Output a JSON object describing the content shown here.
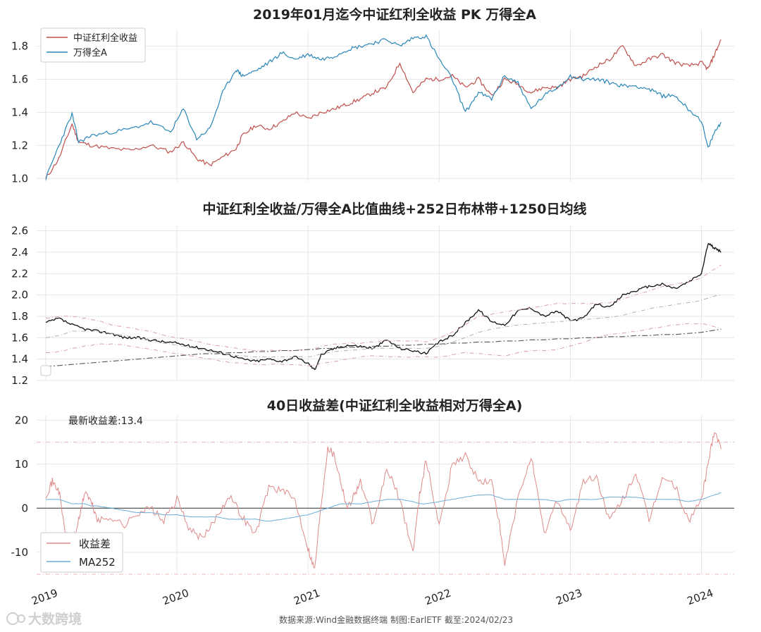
{
  "colors": {
    "dividend": "#c0504d",
    "wind": "#2a86b8",
    "ratio": "#111111",
    "band_upper": "#d9a0aa",
    "band_mid": "#b0b0b0",
    "band_lower": "#d9a0aa",
    "ma1250": "#555555",
    "diff": "#e08a8a",
    "ma252": "#6baed6",
    "grid": "#e6e6e6"
  },
  "footer": "数据来源:Wind金融数据终端  制图:EarlETF 截至:2024/02/23",
  "watermark": "大数跨境",
  "chart_data": [
    {
      "type": "line",
      "title": "2019年01月迄今中证红利全收益 PK 万得全A",
      "ylim": [
        0.98,
        1.9
      ],
      "yticks": [
        "1.0",
        "1.2",
        "1.4",
        "1.6",
        "1.8"
      ],
      "yticks_values": [
        1.0,
        1.2,
        1.4,
        1.6,
        1.8
      ],
      "legend_position": "top-left",
      "x": [
        2019.0,
        2019.1,
        2019.2,
        2019.25,
        2019.35,
        2019.5,
        2019.65,
        2019.8,
        2019.95,
        2020.05,
        2020.15,
        2020.25,
        2020.35,
        2020.45,
        2020.5,
        2020.6,
        2020.7,
        2020.8,
        2020.9,
        2021.0,
        2021.1,
        2021.2,
        2021.3,
        2021.4,
        2021.5,
        2021.6,
        2021.7,
        2021.8,
        2021.9,
        2022.0,
        2022.1,
        2022.2,
        2022.3,
        2022.4,
        2022.5,
        2022.6,
        2022.7,
        2022.8,
        2022.9,
        2023.0,
        2023.1,
        2023.2,
        2023.3,
        2023.4,
        2023.5,
        2023.6,
        2023.7,
        2023.8,
        2023.9,
        2024.0,
        2024.05,
        2024.1,
        2024.15
      ],
      "series": [
        {
          "name": "中证红利全收益",
          "values": [
            1.0,
            1.12,
            1.33,
            1.22,
            1.2,
            1.18,
            1.17,
            1.2,
            1.16,
            1.22,
            1.12,
            1.08,
            1.13,
            1.18,
            1.26,
            1.32,
            1.3,
            1.34,
            1.4,
            1.36,
            1.4,
            1.42,
            1.45,
            1.48,
            1.52,
            1.55,
            1.7,
            1.52,
            1.6,
            1.6,
            1.62,
            1.55,
            1.6,
            1.5,
            1.6,
            1.57,
            1.52,
            1.55,
            1.55,
            1.6,
            1.62,
            1.68,
            1.72,
            1.8,
            1.68,
            1.72,
            1.75,
            1.7,
            1.68,
            1.7,
            1.66,
            1.75,
            1.84
          ]
        },
        {
          "name": "万得全A",
          "values": [
            1.0,
            1.2,
            1.39,
            1.22,
            1.26,
            1.28,
            1.3,
            1.34,
            1.28,
            1.42,
            1.24,
            1.3,
            1.52,
            1.66,
            1.62,
            1.65,
            1.7,
            1.76,
            1.72,
            1.75,
            1.72,
            1.74,
            1.78,
            1.8,
            1.82,
            1.84,
            1.8,
            1.85,
            1.86,
            1.72,
            1.6,
            1.4,
            1.52,
            1.48,
            1.62,
            1.58,
            1.42,
            1.5,
            1.55,
            1.62,
            1.6,
            1.6,
            1.58,
            1.56,
            1.56,
            1.54,
            1.5,
            1.5,
            1.42,
            1.35,
            1.18,
            1.28,
            1.34
          ]
        }
      ]
    },
    {
      "type": "line",
      "title": "中证红利全收益/万得全A比值曲线+252日布林带+1250日均线",
      "ylim": [
        1.2,
        2.65
      ],
      "yticks": [
        "1.2",
        "1.4",
        "1.6",
        "1.8",
        "2.0",
        "2.2",
        "2.4",
        "2.6"
      ],
      "yticks_values": [
        1.2,
        1.4,
        1.6,
        1.8,
        2.0,
        2.2,
        2.4,
        2.6
      ],
      "x": [
        2019.0,
        2019.1,
        2019.2,
        2019.3,
        2019.4,
        2019.5,
        2019.6,
        2019.7,
        2019.8,
        2019.9,
        2020.0,
        2020.1,
        2020.2,
        2020.3,
        2020.4,
        2020.5,
        2020.6,
        2020.7,
        2020.8,
        2020.9,
        2021.0,
        2021.05,
        2021.1,
        2021.2,
        2021.3,
        2021.4,
        2021.5,
        2021.6,
        2021.7,
        2021.8,
        2021.9,
        2022.0,
        2022.1,
        2022.2,
        2022.3,
        2022.4,
        2022.5,
        2022.6,
        2022.7,
        2022.8,
        2022.9,
        2023.0,
        2023.1,
        2023.2,
        2023.3,
        2023.4,
        2023.5,
        2023.6,
        2023.7,
        2023.8,
        2023.9,
        2024.0,
        2024.05,
        2024.1,
        2024.15
      ],
      "series": [
        {
          "name": "",
          "values": [
            1.74,
            1.78,
            1.72,
            1.68,
            1.66,
            1.64,
            1.6,
            1.6,
            1.58,
            1.56,
            1.55,
            1.52,
            1.5,
            1.47,
            1.44,
            1.4,
            1.38,
            1.4,
            1.38,
            1.42,
            1.36,
            1.3,
            1.44,
            1.5,
            1.53,
            1.52,
            1.5,
            1.58,
            1.5,
            1.48,
            1.45,
            1.56,
            1.62,
            1.74,
            1.86,
            1.75,
            1.72,
            1.85,
            1.88,
            1.8,
            1.85,
            1.76,
            1.78,
            1.92,
            1.88,
            2.0,
            2.04,
            2.08,
            2.1,
            2.06,
            2.12,
            2.2,
            2.48,
            2.44,
            2.4
          ]
        },
        {
          "name": "",
          "values": [
            1.78,
            1.8,
            1.8,
            1.78,
            1.76,
            1.72,
            1.7,
            1.68,
            1.66,
            1.62,
            1.6,
            1.58,
            1.55,
            1.53,
            1.51,
            1.49,
            1.48,
            1.48,
            1.48,
            1.48,
            1.49,
            1.5,
            1.52,
            1.54,
            1.55,
            1.55,
            1.56,
            1.57,
            1.57,
            1.57,
            1.56,
            1.6,
            1.65,
            1.72,
            1.8,
            1.82,
            1.84,
            1.86,
            1.88,
            1.9,
            1.92,
            1.92,
            1.92,
            1.92,
            1.93,
            1.96,
            2.0,
            2.04,
            2.08,
            2.1,
            2.12,
            2.16,
            2.2,
            2.24,
            2.28
          ]
        },
        {
          "name": "",
          "values": [
            1.6,
            1.62,
            1.66,
            1.66,
            1.66,
            1.64,
            1.62,
            1.6,
            1.58,
            1.55,
            1.53,
            1.51,
            1.48,
            1.46,
            1.44,
            1.43,
            1.42,
            1.42,
            1.42,
            1.42,
            1.42,
            1.43,
            1.45,
            1.47,
            1.48,
            1.49,
            1.5,
            1.5,
            1.5,
            1.5,
            1.5,
            1.52,
            1.56,
            1.6,
            1.65,
            1.68,
            1.7,
            1.72,
            1.73,
            1.74,
            1.75,
            1.76,
            1.77,
            1.78,
            1.79,
            1.81,
            1.84,
            1.87,
            1.89,
            1.91,
            1.93,
            1.95,
            1.97,
            1.99,
            2.0
          ]
        },
        {
          "name": "",
          "values": [
            1.46,
            1.47,
            1.5,
            1.52,
            1.54,
            1.54,
            1.53,
            1.51,
            1.49,
            1.47,
            1.45,
            1.43,
            1.41,
            1.39,
            1.37,
            1.36,
            1.35,
            1.35,
            1.35,
            1.35,
            1.34,
            1.34,
            1.36,
            1.38,
            1.4,
            1.42,
            1.43,
            1.42,
            1.42,
            1.42,
            1.42,
            1.42,
            1.44,
            1.46,
            1.45,
            1.44,
            1.43,
            1.46,
            1.48,
            1.48,
            1.49,
            1.52,
            1.56,
            1.6,
            1.63,
            1.64,
            1.66,
            1.68,
            1.7,
            1.72,
            1.73,
            1.73,
            1.72,
            1.7,
            1.68
          ]
        },
        {
          "name": "",
          "values": [
            1.33,
            1.34,
            1.35,
            1.36,
            1.37,
            1.38,
            1.39,
            1.4,
            1.41,
            1.42,
            1.43,
            1.44,
            1.45,
            1.45,
            1.46,
            1.46,
            1.47,
            1.47,
            1.48,
            1.48,
            1.49,
            1.49,
            1.5,
            1.5,
            1.51,
            1.51,
            1.52,
            1.52,
            1.53,
            1.53,
            1.54,
            1.54,
            1.55,
            1.55,
            1.56,
            1.56,
            1.57,
            1.57,
            1.58,
            1.58,
            1.59,
            1.59,
            1.6,
            1.6,
            1.61,
            1.61,
            1.62,
            1.62,
            1.63,
            1.63,
            1.64,
            1.65,
            1.66,
            1.67,
            1.68
          ]
        }
      ]
    },
    {
      "type": "line",
      "title": "40日收益差(中证红利全收益相对万得全A)",
      "annotation": "最新收益差:13.4",
      "ylim": [
        -15,
        21
      ],
      "yticks": [
        "-10",
        "0",
        "10",
        "20"
      ],
      "yticks_values": [
        -10,
        0,
        10,
        20
      ],
      "hlines": [
        15,
        -15
      ],
      "legend_position": "bottom-left",
      "xticks": [
        "2019",
        "2020",
        "2021",
        "2022",
        "2023",
        "2024"
      ],
      "xticks_values": [
        2019,
        2020,
        2021,
        2022,
        2023,
        2024
      ],
      "x": [
        2019.0,
        2019.05,
        2019.1,
        2019.15,
        2019.2,
        2019.25,
        2019.3,
        2019.35,
        2019.4,
        2019.5,
        2019.6,
        2019.7,
        2019.8,
        2019.9,
        2020.0,
        2020.1,
        2020.2,
        2020.3,
        2020.4,
        2020.5,
        2020.6,
        2020.7,
        2020.8,
        2020.9,
        2021.0,
        2021.05,
        2021.1,
        2021.15,
        2021.2,
        2021.25,
        2021.3,
        2021.35,
        2021.4,
        2021.5,
        2021.6,
        2021.7,
        2021.8,
        2021.85,
        2021.9,
        2022.0,
        2022.1,
        2022.2,
        2022.3,
        2022.4,
        2022.45,
        2022.5,
        2022.6,
        2022.7,
        2022.8,
        2022.9,
        2023.0,
        2023.1,
        2023.2,
        2023.3,
        2023.4,
        2023.5,
        2023.6,
        2023.7,
        2023.8,
        2023.9,
        2024.0,
        2024.05,
        2024.1,
        2024.15
      ],
      "series": [
        {
          "name": "收益差",
          "values": [
            3,
            6,
            4,
            -6,
            -8,
            -3,
            4,
            1,
            -3,
            -2,
            -4,
            -1,
            0,
            -3,
            2,
            -5,
            -7,
            -2,
            3,
            -2,
            -6,
            5,
            4,
            2,
            -9,
            -14,
            1,
            14,
            12,
            6,
            0,
            3,
            6,
            -4,
            9,
            2,
            -10,
            3,
            11,
            -4,
            10,
            12,
            6,
            6,
            -2,
            -13,
            2,
            12,
            -6,
            2,
            -5,
            6,
            7,
            -3,
            2,
            8,
            -3,
            7,
            5,
            -3,
            2,
            10,
            18,
            13.4
          ]
        },
        {
          "name": "MA252",
          "values": [
            2,
            2,
            2,
            1.5,
            1,
            1,
            1,
            0.5,
            0.5,
            0,
            -0.5,
            -1,
            -1,
            -1.5,
            -1.5,
            -2,
            -2,
            -2,
            -2.5,
            -2.5,
            -2.5,
            -3,
            -2.5,
            -2,
            -1.5,
            -1,
            -0.5,
            0,
            0.5,
            1,
            1,
            1,
            1,
            1.5,
            2,
            2,
            1.5,
            1,
            1,
            1.5,
            2,
            2.5,
            3,
            3,
            2.5,
            2,
            2,
            2,
            2,
            1.5,
            2,
            2,
            2,
            2.5,
            2.5,
            2.5,
            2,
            2,
            2,
            1.5,
            2,
            2.5,
            3,
            3.5
          ]
        }
      ]
    }
  ]
}
